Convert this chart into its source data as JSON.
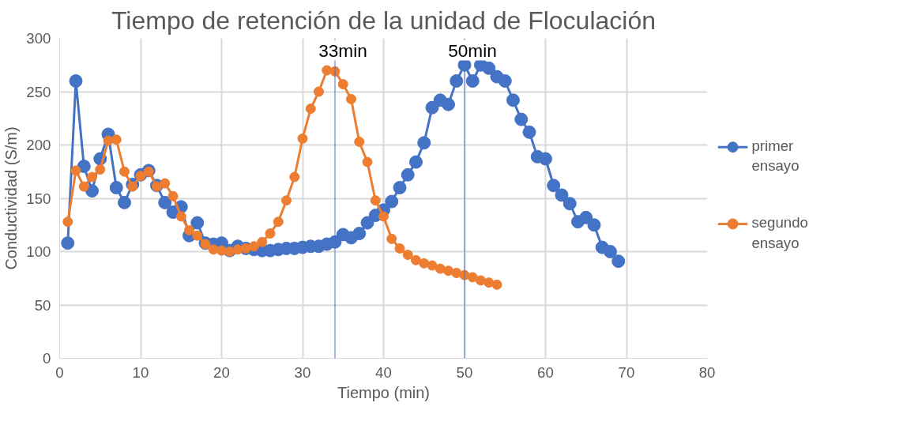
{
  "chart_data": {
    "type": "line",
    "title": "Tiempo de retención de la unidad de Floculación",
    "xlabel": "Tiempo (min)",
    "ylabel": "Conductividad (S/m)",
    "xlim": [
      0,
      80
    ],
    "xticks": [
      0,
      10,
      20,
      30,
      40,
      50,
      60,
      70,
      80
    ],
    "ylim": [
      0,
      300
    ],
    "yticks": [
      0,
      50,
      100,
      150,
      200,
      250,
      300
    ],
    "grid": true,
    "legend": "right",
    "marker": "circle",
    "line_style": "solid",
    "series": [
      {
        "name": "primer ensayo",
        "color": "#4472c4",
        "x": [
          1,
          2,
          3,
          4,
          5,
          6,
          7,
          8,
          9,
          10,
          11,
          12,
          13,
          14,
          15,
          16,
          17,
          18,
          19,
          20,
          21,
          22,
          23,
          24,
          25,
          26,
          27,
          28,
          29,
          30,
          31,
          32,
          33,
          34,
          35,
          36,
          37,
          38,
          39,
          40,
          41,
          42,
          43,
          44,
          45,
          46,
          47,
          48,
          49,
          50,
          51,
          52,
          53,
          54,
          55,
          56,
          57,
          58,
          59,
          60,
          61,
          62,
          63,
          64,
          65,
          66,
          67,
          68,
          69
        ],
        "values": [
          108,
          260,
          180,
          157,
          187,
          210,
          160,
          146,
          163,
          172,
          176,
          162,
          146,
          137,
          142,
          115,
          127,
          108,
          107,
          108,
          101,
          105,
          103,
          102,
          101,
          101,
          102,
          103,
          103,
          104,
          105,
          105,
          107,
          109,
          116,
          113,
          117,
          127,
          134,
          139,
          147,
          160,
          172,
          184,
          202,
          235,
          242,
          238,
          260,
          275,
          260,
          275,
          272,
          264,
          260,
          242,
          224,
          212,
          189,
          187,
          162,
          153,
          145,
          128,
          132,
          125,
          104,
          100,
          91
        ]
      },
      {
        "name": "segundo ensayo",
        "color": "#ed7d31",
        "x": [
          1,
          2,
          3,
          4,
          5,
          6,
          7,
          8,
          9,
          10,
          11,
          12,
          13,
          14,
          15,
          16,
          17,
          18,
          19,
          20,
          21,
          22,
          23,
          24,
          25,
          26,
          27,
          28,
          29,
          30,
          31,
          32,
          33,
          34,
          35,
          36,
          37,
          38,
          39,
          40,
          41,
          42,
          43,
          44,
          45,
          46,
          47,
          48,
          49,
          50,
          51,
          52,
          53,
          54
        ],
        "values": [
          128,
          176,
          161,
          170,
          177,
          204,
          205,
          175,
          161,
          171,
          175,
          161,
          164,
          152,
          133,
          120,
          115,
          107,
          102,
          101,
          100,
          102,
          103,
          105,
          109,
          117,
          128,
          148,
          170,
          206,
          234,
          250,
          270,
          269,
          257,
          243,
          203,
          184,
          148,
          133,
          112,
          103,
          97,
          92,
          89,
          87,
          84,
          82,
          80,
          78,
          76,
          73,
          71,
          69
        ]
      }
    ],
    "ref_lines": [
      {
        "axis": "x",
        "value": 34,
        "label": "33min",
        "color": "#4472c4"
      },
      {
        "axis": "x",
        "value": 50,
        "label": "50min",
        "color": "#4472c4"
      }
    ]
  }
}
